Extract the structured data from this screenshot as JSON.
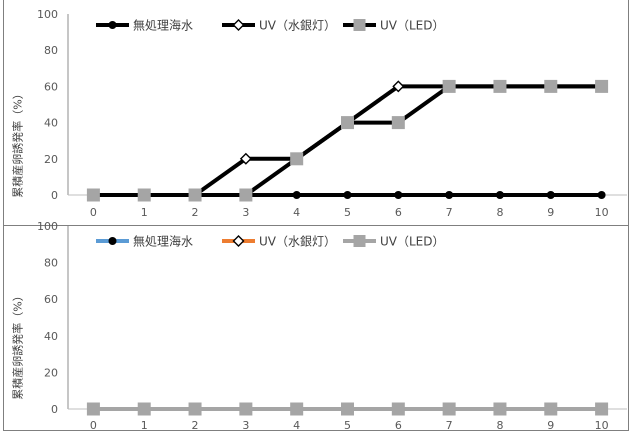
{
  "chart_data": [
    {
      "type": "line",
      "x": [
        0,
        1,
        2,
        3,
        4,
        5,
        6,
        7,
        8,
        9,
        10
      ],
      "ylabel": "累積産卵誘発率（%）",
      "ylim": [
        0,
        100
      ],
      "y_ticks": [
        0,
        20,
        40,
        60,
        80,
        100
      ],
      "grid": false,
      "legend": "top",
      "series": [
        {
          "name": "無処理海水",
          "values": [
            0,
            0,
            0,
            0,
            0,
            0,
            0,
            0,
            0,
            0,
            0
          ],
          "line_color": "#000000",
          "marker": "circle",
          "marker_color": "#000000"
        },
        {
          "name": "UV（水銀灯）",
          "values": [
            0,
            0,
            0,
            20,
            20,
            40,
            60,
            60,
            60,
            60,
            60
          ],
          "line_color": "#000000",
          "marker": "diamond",
          "marker_color": "#FFFFFF"
        },
        {
          "name": "UV（LED）",
          "values": [
            0,
            0,
            0,
            0,
            20,
            40,
            40,
            60,
            60,
            60,
            60
          ],
          "line_color": "#000000",
          "marker": "square",
          "marker_color": "#A5A5A5"
        }
      ]
    },
    {
      "type": "line",
      "x": [
        0,
        1,
        2,
        3,
        4,
        5,
        6,
        7,
        8,
        9,
        10
      ],
      "ylabel": "累積産卵誘発率（%）",
      "ylim": [
        0,
        100
      ],
      "y_ticks": [
        0,
        20,
        40,
        60,
        80,
        100
      ],
      "grid": false,
      "legend": "top",
      "series": [
        {
          "name": "無処理海水",
          "values": [
            0,
            0,
            0,
            0,
            0,
            0,
            0,
            0,
            0,
            0,
            0
          ],
          "line_color": "#5B9BD5",
          "marker": "circle",
          "marker_color": "#000000"
        },
        {
          "name": "UV（水銀灯）",
          "values": [
            0,
            0,
            0,
            0,
            0,
            0,
            0,
            0,
            0,
            0,
            0
          ],
          "line_color": "#ED7D31",
          "marker": "diamond",
          "marker_color": "#FFFFFF"
        },
        {
          "name": "UV（LED）",
          "values": [
            0,
            0,
            0,
            0,
            0,
            0,
            0,
            0,
            0,
            0,
            0
          ],
          "line_color": "#A5A5A5",
          "marker": "square",
          "marker_color": "#A5A5A5"
        }
      ]
    }
  ]
}
